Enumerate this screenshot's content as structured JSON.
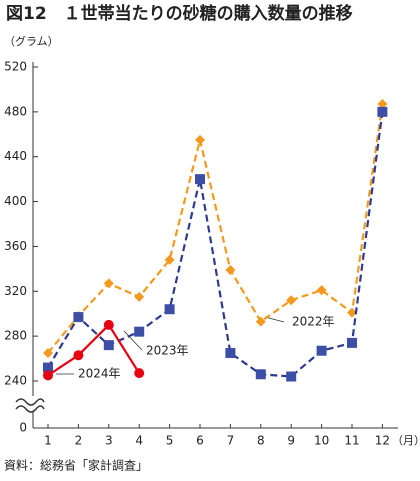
{
  "chart_data": {
    "type": "line",
    "title": "図12　１世帯当たりの砂糖の購入数量の推移",
    "y_label": "（グラム）",
    "x_label": "（月）",
    "source": "資料：総務省「家計調査」",
    "categories": [
      "1",
      "2",
      "3",
      "4",
      "5",
      "6",
      "7",
      "8",
      "9",
      "10",
      "11",
      "12"
    ],
    "ylim": [
      0,
      520
    ],
    "axis_break": [
      0,
      240
    ],
    "yticks": [
      0,
      240,
      280,
      320,
      360,
      400,
      440,
      480,
      520
    ],
    "series": [
      {
        "name": "2022年",
        "color": "#f39a1e",
        "marker": "diamond",
        "dashed": true,
        "values": [
          265,
          298,
          327,
          315,
          348,
          455,
          339,
          293,
          312,
          321,
          301,
          487
        ]
      },
      {
        "name": "2023年",
        "color": "#2e3a8f",
        "marker": "square",
        "dashed": true,
        "values": [
          252,
          297,
          272,
          284,
          304,
          420,
          265,
          246,
          244,
          267,
          274,
          480
        ]
      },
      {
        "name": "2024年",
        "color": "#e60012",
        "marker": "circle",
        "dashed": false,
        "values": [
          245,
          263,
          290,
          247,
          null,
          null,
          null,
          null,
          null,
          null,
          null,
          null
        ]
      }
    ]
  }
}
